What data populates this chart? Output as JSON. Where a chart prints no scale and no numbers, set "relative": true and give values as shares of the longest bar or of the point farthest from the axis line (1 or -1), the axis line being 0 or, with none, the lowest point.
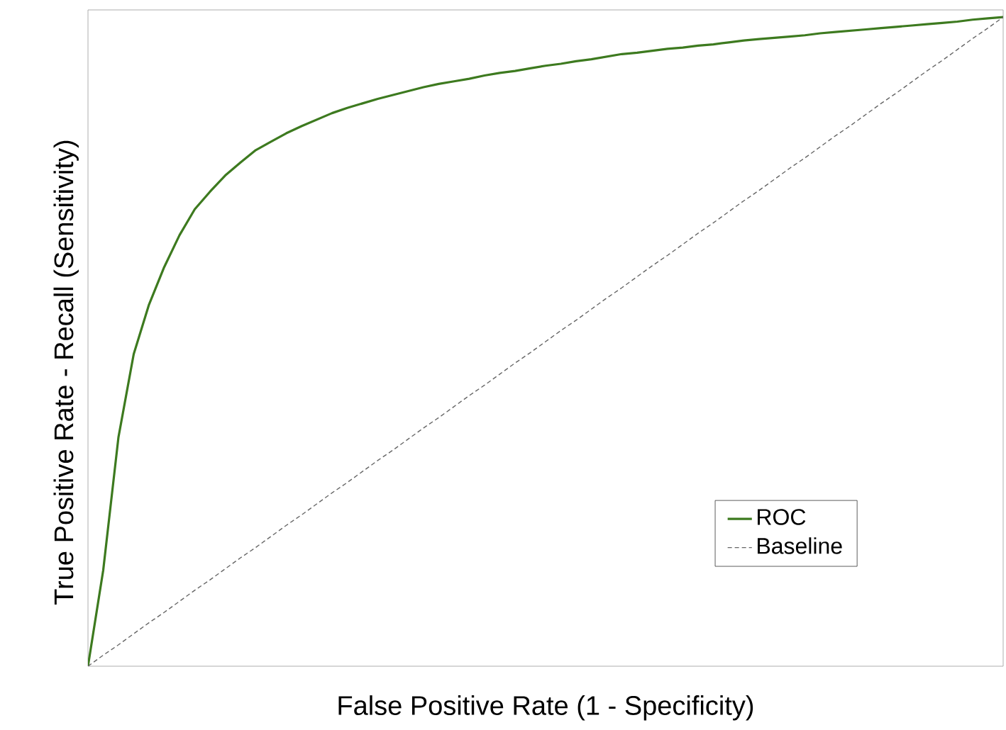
{
  "chart_data": {
    "type": "line",
    "relative": true,
    "xlabel": "False Positive Rate (1 - Specificity)",
    "ylabel": "True Positive Rate - Recall (Sensitivity)",
    "legend": "bottom right",
    "categories": [
      null,
      null,
      null,
      null,
      null,
      null,
      null,
      null,
      null,
      null,
      null,
      null,
      null,
      null,
      null,
      null,
      null,
      null,
      null,
      null,
      null,
      null,
      null,
      null,
      null,
      null,
      null,
      null,
      null,
      null,
      null,
      null,
      null,
      null,
      null,
      null,
      null,
      null,
      null,
      null,
      null,
      null,
      null,
      null,
      null,
      null,
      null,
      null,
      null,
      null,
      null,
      null,
      null,
      null,
      null,
      null,
      null,
      null,
      null,
      null,
      null
    ],
    "series": [
      {
        "name": "ROC",
        "color": "#3d7a1f",
        "line_style": "solid",
        "values": [
          0,
          0.148,
          0.353,
          0.481,
          0.557,
          0.615,
          0.664,
          0.704,
          0.731,
          0.756,
          0.776,
          0.795,
          0.808,
          0.821,
          0.832,
          0.842,
          0.852,
          0.86,
          0.867,
          0.874,
          0.88,
          0.886,
          0.892,
          0.897,
          0.901,
          0.905,
          0.91,
          0.914,
          0.917,
          0.921,
          0.925,
          0.928,
          0.932,
          0.935,
          0.939,
          0.943,
          0.945,
          0.948,
          0.951,
          0.953,
          0.956,
          0.958,
          0.961,
          0.964,
          0.966,
          0.968,
          0.97,
          0.972,
          0.975,
          0.977,
          0.979,
          0.981,
          0.983,
          0.985,
          0.987,
          0.989,
          0.991,
          0.993,
          0.996,
          0.998,
          1
        ]
      },
      {
        "name": "Baseline",
        "color": "#666666",
        "line_style": "dashed",
        "values": [
          0,
          0.017,
          0.033,
          0.05,
          0.067,
          0.083,
          0.1,
          0.117,
          0.133,
          0.15,
          0.167,
          0.183,
          0.2,
          0.217,
          0.233,
          0.25,
          0.267,
          0.283,
          0.3,
          0.317,
          0.333,
          0.35,
          0.367,
          0.383,
          0.4,
          0.417,
          0.433,
          0.45,
          0.467,
          0.483,
          0.5,
          0.517,
          0.533,
          0.55,
          0.567,
          0.583,
          0.6,
          0.617,
          0.633,
          0.65,
          0.667,
          0.683,
          0.7,
          0.717,
          0.733,
          0.75,
          0.767,
          0.783,
          0.8,
          0.817,
          0.833,
          0.85,
          0.867,
          0.883,
          0.9,
          0.917,
          0.933,
          0.95,
          0.967,
          0.983,
          1
        ]
      }
    ]
  }
}
